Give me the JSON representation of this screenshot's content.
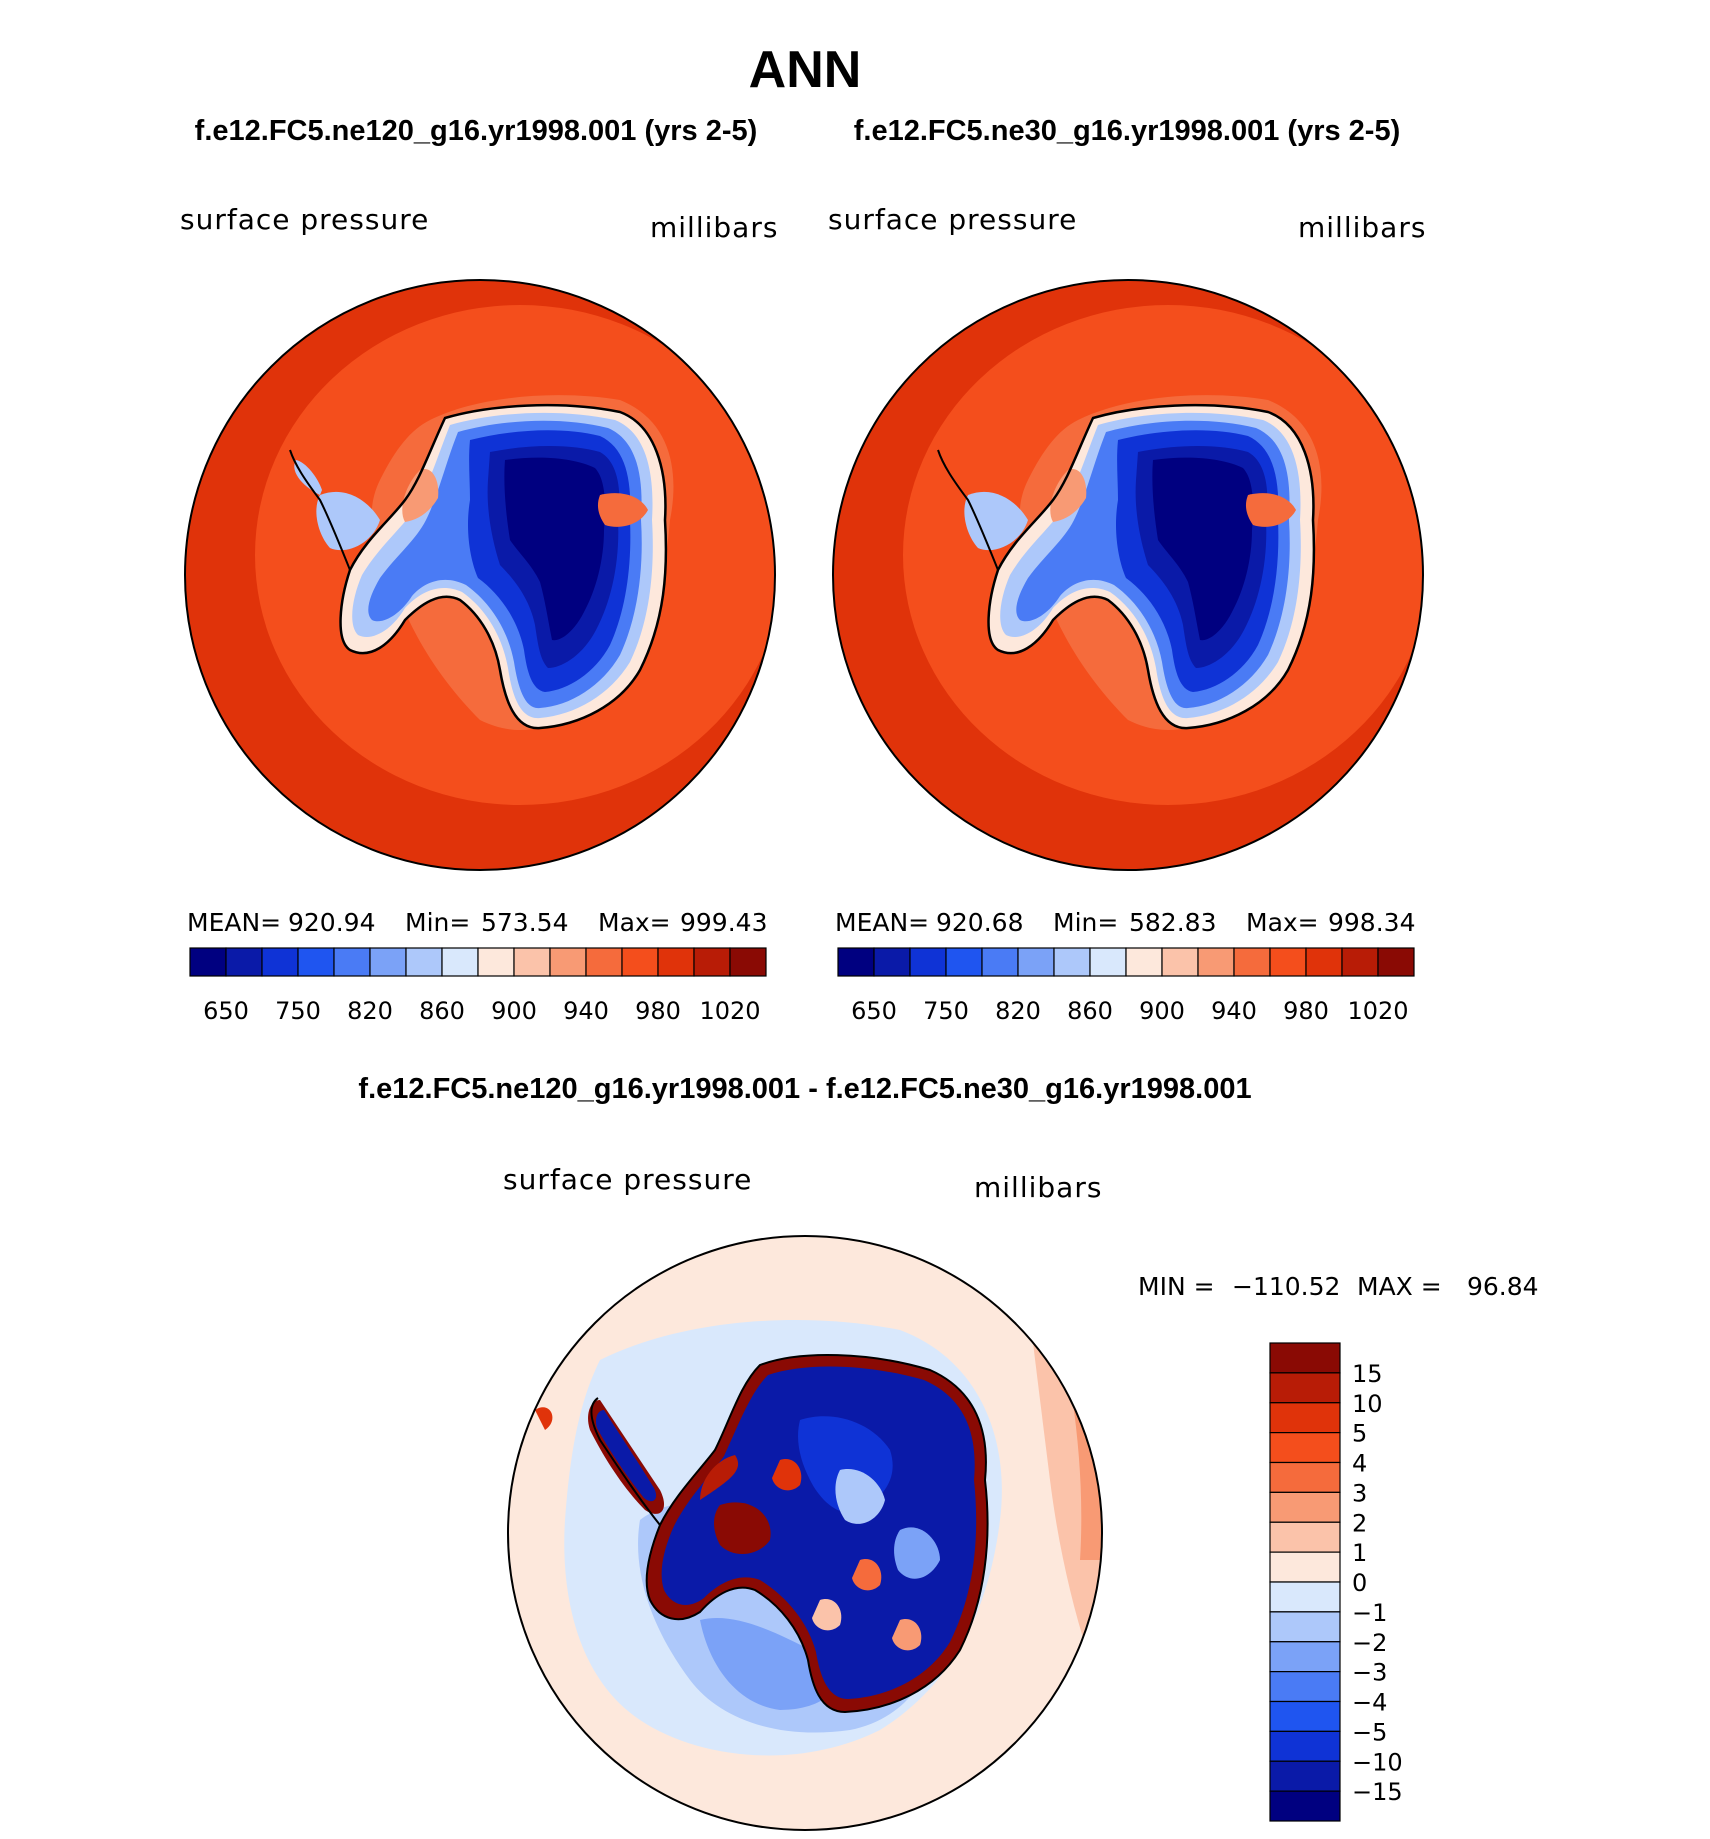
{
  "page_title": "ANN",
  "panels": [
    {
      "case_title": "f.e12.FC5.ne120_g16.yr1998.001 (yrs 2-5)",
      "field": "surface pressure",
      "units": "millibars",
      "stats": {
        "mean_label": "MEAN=",
        "mean": "920.94",
        "min_label": "Min=",
        "min": "573.54",
        "max_label": "Max=",
        "max": "999.43"
      },
      "colorbar_labels": [
        "650",
        "750",
        "820",
        "860",
        "900",
        "940",
        "980",
        "1020"
      ]
    },
    {
      "case_title": "f.e12.FC5.ne30_g16.yr1998.001 (yrs 2-5)",
      "field": "surface pressure",
      "units": "millibars",
      "stats": {
        "mean_label": "MEAN=",
        "mean": "920.68",
        "min_label": "Min=",
        "min": "582.83",
        "max_label": "Max=",
        "max": "998.34"
      },
      "colorbar_labels": [
        "650",
        "750",
        "820",
        "860",
        "900",
        "940",
        "980",
        "1020"
      ]
    }
  ],
  "diff_panel": {
    "title": "f.e12.FC5.ne120_g16.yr1998.001 - f.e12.FC5.ne30_g16.yr1998.001",
    "field": "surface pressure",
    "units": "millibars",
    "min_label": "MIN =",
    "min": "−110.52",
    "max_label": "MAX =",
    "max": "96.84",
    "colorbar_labels": [
      "15",
      "10",
      "5",
      "4",
      "3",
      "2",
      "1",
      "0",
      "−1",
      "−2",
      "−3",
      "−4",
      "−5",
      "−10",
      "−15"
    ]
  },
  "colors": {
    "abs_scale": [
      "#000080",
      "#0a1aa8",
      "#0f33d6",
      "#1f55f0",
      "#4a7bf5",
      "#7ba2f7",
      "#adc8fa",
      "#d9e8fc",
      "#fde8dc",
      "#fbc3aa",
      "#f89a74",
      "#f56b3c",
      "#f44e1c",
      "#e0330a",
      "#b81c06",
      "#8a0a04"
    ],
    "diff_scale": [
      "#8a0a04",
      "#b81c06",
      "#e0330a",
      "#f44e1c",
      "#f56b3c",
      "#f89a74",
      "#fbc3aa",
      "#fde8dc",
      "#d9e8fc",
      "#adc8fa",
      "#7ba2f7",
      "#4a7bf5",
      "#1f55f0",
      "#0f33d6",
      "#0a1aa8",
      "#000080"
    ]
  }
}
